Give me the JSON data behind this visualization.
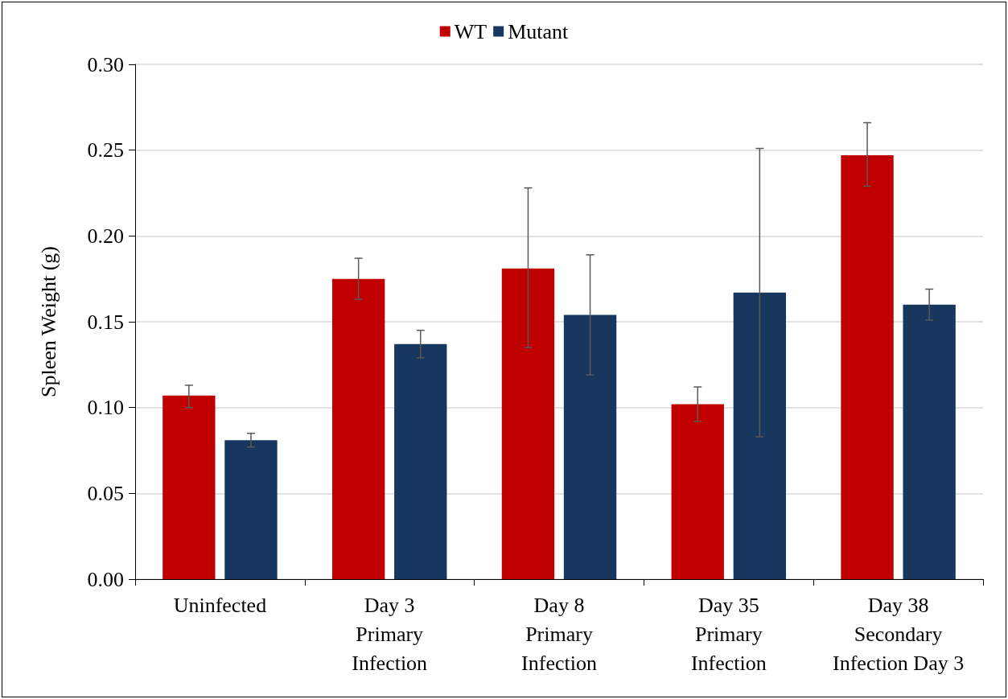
{
  "chart_data": {
    "type": "bar",
    "ylabel": "Spleen Weight (g)",
    "categories": [
      "Uninfected",
      "Day 3\nPrimary\nInfection",
      "Day 8\nPrimary\nInfection",
      "Day 35\nPrimary\nInfection",
      "Day 38\nSecondary\nInfection Day 3"
    ],
    "series": [
      {
        "name": "WT",
        "color": "#c00000",
        "values": [
          0.107,
          0.175,
          0.181,
          0.102,
          0.247
        ],
        "errors": [
          [
            0.1,
            0.113
          ],
          [
            0.163,
            0.187
          ],
          [
            0.135,
            0.228
          ],
          [
            0.092,
            0.112
          ],
          [
            0.229,
            0.266
          ]
        ]
      },
      {
        "name": "Mutant",
        "color": "#17375e",
        "values": [
          0.081,
          0.137,
          0.154,
          0.167,
          0.16
        ],
        "errors": [
          [
            0.077,
            0.085
          ],
          [
            0.129,
            0.145
          ],
          [
            0.119,
            0.189
          ],
          [
            0.083,
            0.251
          ],
          [
            0.151,
            0.169
          ]
        ]
      }
    ],
    "ylim": [
      0,
      0.3
    ],
    "yticks": [
      {
        "value": 0,
        "label": "0.00"
      },
      {
        "value": 0.05,
        "label": "0.05"
      },
      {
        "value": 0.1,
        "label": "0.10"
      },
      {
        "value": 0.15,
        "label": "0.15"
      },
      {
        "value": 0.2,
        "label": "0.20"
      },
      {
        "value": 0.25,
        "label": "0.25"
      },
      {
        "value": 0.3,
        "label": "0.30"
      }
    ],
    "grid": "y",
    "legend": "top"
  }
}
